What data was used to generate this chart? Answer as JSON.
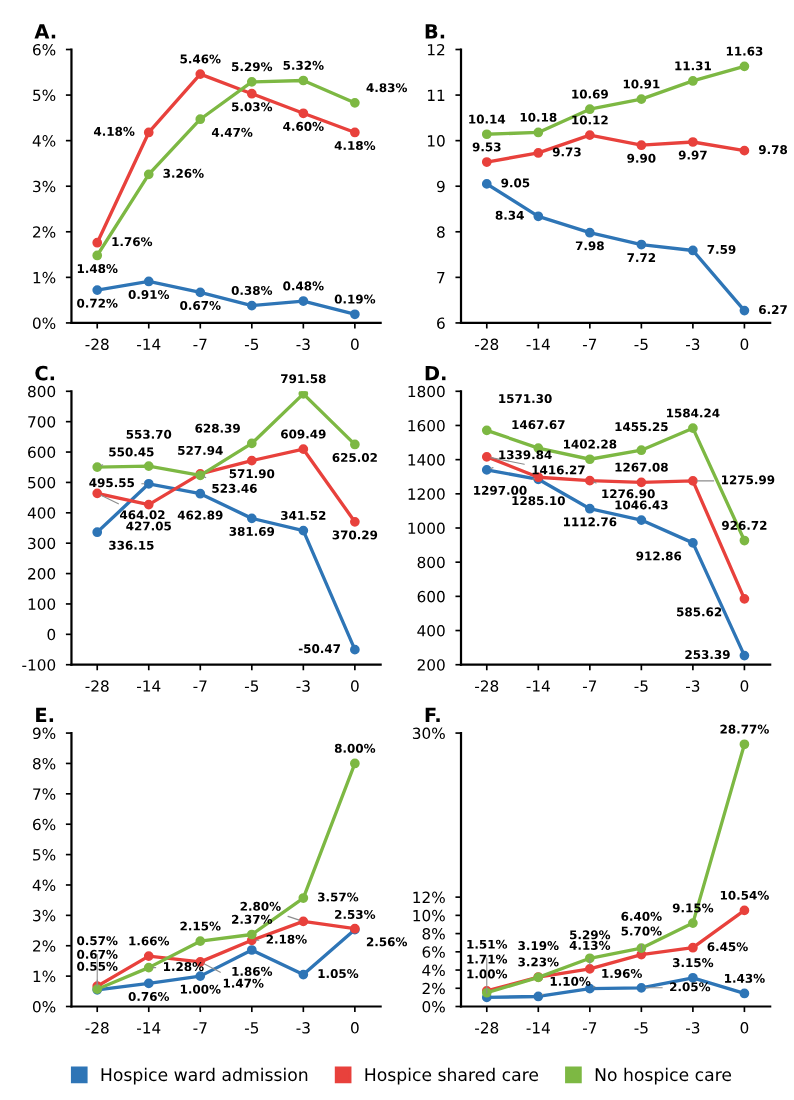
{
  "chart_data": [
    {
      "type": "line",
      "title": "A.",
      "categories": [
        "-28",
        "-14",
        "-7",
        "-5",
        "-3",
        "0"
      ],
      "ylim": [
        0,
        6
      ],
      "yticks": [
        {
          "value": 0,
          "label": "0%"
        },
        {
          "value": 1,
          "label": "1%"
        },
        {
          "value": 2,
          "label": "2%"
        },
        {
          "value": 3,
          "label": "3%"
        },
        {
          "value": 4,
          "label": "4%"
        },
        {
          "value": 5,
          "label": "5%"
        },
        {
          "value": 6,
          "label": "6%"
        }
      ],
      "marker": "circle",
      "grid": false,
      "legend": "bottom",
      "series": [
        {
          "name": "Hospice ward admission",
          "color": "#2e75b6",
          "values": [
            0.72,
            0.91,
            0.67,
            0.38,
            0.48,
            0.19
          ],
          "value_labels": [
            "0.72%",
            "0.91%",
            "0.67%",
            "0.38%",
            "0.48%",
            "0.19%"
          ]
        },
        {
          "name": "Hospice shared care",
          "color": "#e8413c",
          "values": [
            1.76,
            4.18,
            5.46,
            5.03,
            4.6,
            4.18
          ],
          "value_labels": [
            "1.76%",
            "4.18%",
            "5.46%",
            "5.03%",
            "4.60%",
            "4.18%"
          ]
        },
        {
          "name": "No hospice care",
          "color": "#7db843",
          "values": [
            1.48,
            3.26,
            4.47,
            5.29,
            5.32,
            4.83
          ],
          "value_labels": [
            "1.48%",
            "3.26%",
            "4.47%",
            "5.29%",
            "5.32%",
            "4.83%"
          ]
        }
      ]
    },
    {
      "type": "line",
      "title": "B.",
      "categories": [
        "-28",
        "-14",
        "-7",
        "-5",
        "-3",
        "0"
      ],
      "ylim": [
        6,
        12
      ],
      "yticks": [
        6,
        7,
        8,
        9,
        10,
        11,
        12
      ],
      "marker": "circle",
      "grid": false,
      "legend": "bottom",
      "series": [
        {
          "name": "Hospice ward admission",
          "color": "#2e75b6",
          "values": [
            9.05,
            8.34,
            7.98,
            7.72,
            7.59,
            6.27
          ],
          "value_labels": [
            "9.05",
            "8.34",
            "7.98",
            "7.72",
            "7.59",
            "6.27"
          ]
        },
        {
          "name": "Hospice shared care",
          "color": "#e8413c",
          "values": [
            9.53,
            9.73,
            10.12,
            9.9,
            9.97,
            9.78
          ],
          "value_labels": [
            "9.53",
            "9.73",
            "10.12",
            "9.90",
            "9.97",
            "9.78"
          ]
        },
        {
          "name": "No hospice care",
          "color": "#7db843",
          "values": [
            10.14,
            10.18,
            10.69,
            10.91,
            11.31,
            11.63
          ],
          "value_labels": [
            "10.14",
            "10.18",
            "10.69",
            "10.91",
            "11.31",
            "11.63"
          ]
        }
      ]
    },
    {
      "type": "line",
      "title": "C.",
      "categories": [
        "-28",
        "-14",
        "-7",
        "-5",
        "-3",
        "0"
      ],
      "ylim": [
        -100,
        800
      ],
      "yticks": [
        -100,
        0,
        100,
        200,
        300,
        400,
        500,
        600,
        700,
        800
      ],
      "marker": "circle",
      "grid": false,
      "legend": "bottom",
      "series": [
        {
          "name": "Hospice ward admission",
          "color": "#2e75b6",
          "values": [
            336.15,
            495.55,
            462.89,
            381.69,
            341.52,
            -50.47
          ],
          "value_labels": [
            "336.15",
            "495.55",
            "462.89",
            "381.69",
            "341.52",
            "-50.47"
          ]
        },
        {
          "name": "Hospice shared care",
          "color": "#e8413c",
          "values": [
            464.02,
            427.05,
            527.94,
            571.9,
            609.49,
            370.29
          ],
          "value_labels": [
            "464.02",
            "427.05",
            "527.94",
            "571.90",
            "609.49",
            "370.29"
          ]
        },
        {
          "name": "No hospice care",
          "color": "#7db843",
          "values": [
            550.45,
            553.7,
            523.46,
            628.39,
            791.58,
            625.02
          ],
          "value_labels": [
            "550.45",
            "553.70",
            "523.46",
            "628.39",
            "791.58",
            "625.02"
          ]
        }
      ]
    },
    {
      "type": "line",
      "title": "D.",
      "categories": [
        "-28",
        "-14",
        "-7",
        "-5",
        "-3",
        "0"
      ],
      "ylim": [
        200,
        1800
      ],
      "yticks": [
        200,
        400,
        600,
        800,
        1000,
        1200,
        1400,
        1600,
        1800
      ],
      "marker": "circle",
      "grid": false,
      "legend": "bottom",
      "series": [
        {
          "name": "Hospice ward admission",
          "color": "#2e75b6",
          "values": [
            1339.84,
            1285.1,
            1112.76,
            1046.43,
            912.86,
            253.39
          ],
          "value_labels": [
            "1339.84",
            "1285.10",
            "1112.76",
            "1046.43",
            "912.86",
            "253.39"
          ]
        },
        {
          "name": "Hospice shared care",
          "color": "#e8413c",
          "values": [
            1416.27,
            1297.0,
            1276.9,
            1267.08,
            1275.99,
            585.62
          ],
          "value_labels": [
            "1416.27",
            "1297.00",
            "1276.90",
            "1267.08",
            "1275.99",
            "585.62"
          ]
        },
        {
          "name": "No hospice care",
          "color": "#7db843",
          "values": [
            1571.3,
            1467.67,
            1402.28,
            1455.25,
            1584.24,
            926.72
          ],
          "value_labels": [
            "1571.30",
            "1467.67",
            "1402.28",
            "1455.25",
            "1584.24",
            "926.72"
          ]
        }
      ]
    },
    {
      "type": "line",
      "title": "E.",
      "categories": [
        "-28",
        "-14",
        "-7",
        "-5",
        "-3",
        "0"
      ],
      "ylim": [
        0,
        9
      ],
      "yticks": [
        {
          "value": 0,
          "label": "0%"
        },
        {
          "value": 1,
          "label": "1%"
        },
        {
          "value": 2,
          "label": "2%"
        },
        {
          "value": 3,
          "label": "3%"
        },
        {
          "value": 4,
          "label": "4%"
        },
        {
          "value": 5,
          "label": "5%"
        },
        {
          "value": 6,
          "label": "6%"
        },
        {
          "value": 7,
          "label": "7%"
        },
        {
          "value": 8,
          "label": "8%"
        },
        {
          "value": 9,
          "label": "9%"
        }
      ],
      "marker": "circle",
      "grid": false,
      "legend": "bottom",
      "series": [
        {
          "name": "Hospice ward admission",
          "color": "#2e75b6",
          "values": [
            0.55,
            0.76,
            1.0,
            1.86,
            1.05,
            2.53
          ],
          "value_labels": [
            "0.55%",
            "0.76%",
            "1.00%",
            "1.86%",
            "1.05%",
            "2.53%"
          ]
        },
        {
          "name": "Hospice shared care",
          "color": "#e8413c",
          "values": [
            0.67,
            1.66,
            1.47,
            2.18,
            2.8,
            2.56
          ],
          "value_labels": [
            "0.67%",
            "1.66%",
            "1.47%",
            "2.18%",
            "2.80%",
            "2.56%"
          ]
        },
        {
          "name": "No hospice care",
          "color": "#7db843",
          "values": [
            0.57,
            1.28,
            2.15,
            2.37,
            3.57,
            8.0
          ],
          "value_labels": [
            "0.57%",
            "1.28%",
            "2.15%",
            "2.37%",
            "3.57%",
            "8.00%"
          ]
        }
      ]
    },
    {
      "type": "line",
      "title": "F.",
      "categories": [
        "-28",
        "-14",
        "-7",
        "-5",
        "-3",
        "0"
      ],
      "ylim": [
        0,
        30
      ],
      "yticks": [
        {
          "value": 0,
          "label": "0%"
        },
        {
          "value": 2,
          "label": "2%"
        },
        {
          "value": 4,
          "label": "4%"
        },
        {
          "value": 6,
          "label": "6%"
        },
        {
          "value": 8,
          "label": "8%"
        },
        {
          "value": 10,
          "label": "10%"
        },
        {
          "value": 12,
          "label": "12%"
        },
        {
          "value": 30,
          "label": "30%"
        }
      ],
      "marker": "circle",
      "grid": false,
      "legend": "bottom",
      "series": [
        {
          "name": "Hospice ward admission",
          "color": "#2e75b6",
          "values": [
            1.0,
            1.1,
            1.96,
            2.05,
            3.15,
            1.43
          ],
          "value_labels": [
            "1.00%",
            "1.10%",
            "1.96%",
            "2.05%",
            "3.15%",
            "1.43%"
          ]
        },
        {
          "name": "Hospice shared care",
          "color": "#e8413c",
          "values": [
            1.71,
            3.23,
            4.13,
            5.7,
            6.45,
            10.54
          ],
          "value_labels": [
            "1.71%",
            "3.23%",
            "4.13%",
            "5.70%",
            "6.45%",
            "10.54%"
          ]
        },
        {
          "name": "No hospice care",
          "color": "#7db843",
          "values": [
            1.51,
            3.19,
            5.29,
            6.4,
            9.15,
            28.77
          ],
          "value_labels": [
            "1.51%",
            "3.19%",
            "5.29%",
            "6.40%",
            "9.15%",
            "28.77%"
          ]
        }
      ]
    }
  ]
}
